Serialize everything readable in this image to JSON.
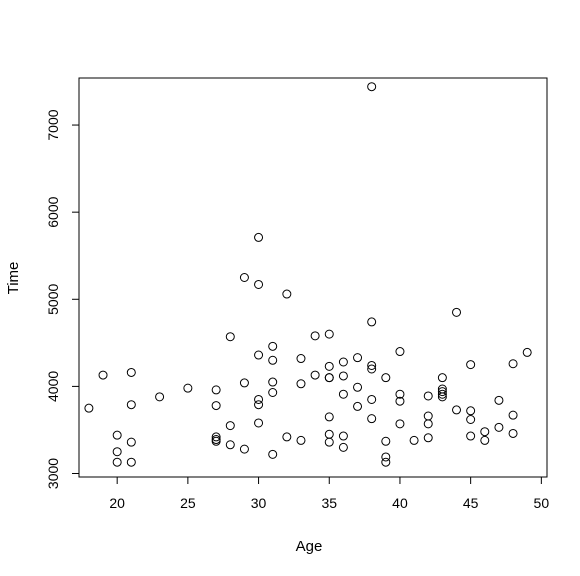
{
  "chart_data": {
    "type": "scatter",
    "title": "",
    "xlabel": "Age",
    "ylabel": "Time",
    "xlim": [
      17.3,
      50.4
    ],
    "ylim": [
      2960,
      7540
    ],
    "x_ticks": [
      20,
      25,
      30,
      35,
      40,
      45,
      50
    ],
    "y_ticks": [
      3000,
      4000,
      5000,
      6000,
      7000
    ],
    "grid": false,
    "marker": "open-circle",
    "points": [
      [
        18,
        3750
      ],
      [
        19,
        4130
      ],
      [
        20,
        3440
      ],
      [
        20,
        3250
      ],
      [
        20,
        3130
      ],
      [
        21,
        4160
      ],
      [
        21,
        3790
      ],
      [
        21,
        3360
      ],
      [
        21,
        3130
      ],
      [
        23,
        3880
      ],
      [
        25,
        3980
      ],
      [
        27,
        3960
      ],
      [
        27,
        3780
      ],
      [
        27,
        3420
      ],
      [
        27,
        3390
      ],
      [
        27,
        3370
      ],
      [
        28,
        4570
      ],
      [
        28,
        3550
      ],
      [
        28,
        3330
      ],
      [
        29,
        5250
      ],
      [
        29,
        4040
      ],
      [
        29,
        3280
      ],
      [
        30,
        5710
      ],
      [
        30,
        5170
      ],
      [
        30,
        4360
      ],
      [
        30,
        3850
      ],
      [
        30,
        3790
      ],
      [
        30,
        3580
      ],
      [
        31,
        4460
      ],
      [
        31,
        4300
      ],
      [
        31,
        4050
      ],
      [
        31,
        3930
      ],
      [
        31,
        3220
      ],
      [
        32,
        5060
      ],
      [
        32,
        3420
      ],
      [
        33,
        4320
      ],
      [
        33,
        4030
      ],
      [
        33,
        3380
      ],
      [
        34,
        4580
      ],
      [
        34,
        4130
      ],
      [
        35,
        4600
      ],
      [
        35,
        4230
      ],
      [
        35,
        4100
      ],
      [
        35,
        4100
      ],
      [
        35,
        3650
      ],
      [
        35,
        3450
      ],
      [
        35,
        3360
      ],
      [
        36,
        4280
      ],
      [
        36,
        4120
      ],
      [
        36,
        3910
      ],
      [
        36,
        3430
      ],
      [
        36,
        3300
      ],
      [
        37,
        4330
      ],
      [
        37,
        3990
      ],
      [
        37,
        3770
      ],
      [
        38,
        7440
      ],
      [
        38,
        4740
      ],
      [
        38,
        4240
      ],
      [
        38,
        4200
      ],
      [
        38,
        3850
      ],
      [
        38,
        3630
      ],
      [
        39,
        4100
      ],
      [
        39,
        3370
      ],
      [
        39,
        3190
      ],
      [
        39,
        3130
      ],
      [
        40,
        4400
      ],
      [
        40,
        3910
      ],
      [
        40,
        3830
      ],
      [
        40,
        3570
      ],
      [
        41,
        3380
      ],
      [
        42,
        3890
      ],
      [
        42,
        3660
      ],
      [
        42,
        3570
      ],
      [
        42,
        3410
      ],
      [
        43,
        4100
      ],
      [
        43,
        3970
      ],
      [
        43,
        3940
      ],
      [
        43,
        3910
      ],
      [
        43,
        3880
      ],
      [
        44,
        4850
      ],
      [
        44,
        3730
      ],
      [
        45,
        4250
      ],
      [
        45,
        3720
      ],
      [
        45,
        3620
      ],
      [
        45,
        3430
      ],
      [
        46,
        3480
      ],
      [
        46,
        3380
      ],
      [
        47,
        3840
      ],
      [
        47,
        3530
      ],
      [
        48,
        4260
      ],
      [
        48,
        3670
      ],
      [
        48,
        3460
      ],
      [
        49,
        4390
      ]
    ]
  }
}
